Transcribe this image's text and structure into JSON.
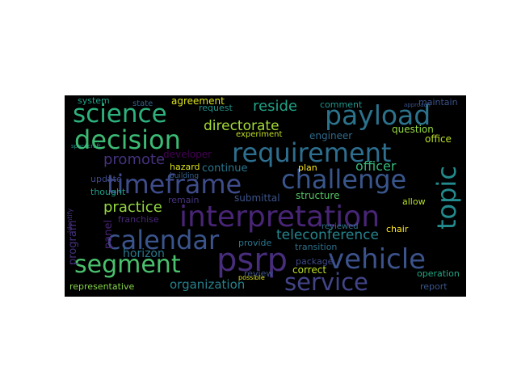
{
  "word_cloud": {
    "background": "#000000",
    "words": [
      {
        "text": "interpretation",
        "color": "#482576"
      },
      {
        "text": "requirement",
        "color": "#2e6e8e"
      },
      {
        "text": "timeframe",
        "color": "#3e4c8a"
      },
      {
        "text": "challenge",
        "color": "#39568c"
      },
      {
        "text": "calendar",
        "color": "#3a548c"
      },
      {
        "text": "payload",
        "color": "#2c738e"
      },
      {
        "text": "decision",
        "color": "#3cbb75"
      },
      {
        "text": "science",
        "color": "#2db27d"
      },
      {
        "text": "segment",
        "color": "#4ac16d"
      },
      {
        "text": "vehicle",
        "color": "#3b528b"
      },
      {
        "text": "service",
        "color": "#414487"
      },
      {
        "text": "psrp",
        "color": "#472d7b"
      },
      {
        "text": "topic",
        "color": "#238a8d"
      },
      {
        "text": "teleconference",
        "color": "#25858e"
      },
      {
        "text": "directorate",
        "color": "#a5db36"
      },
      {
        "text": "practice",
        "color": "#94d840"
      },
      {
        "text": "promote",
        "color": "#46327e"
      },
      {
        "text": "reside",
        "color": "#20a386"
      },
      {
        "text": "officer",
        "color": "#35b779"
      },
      {
        "text": "organization",
        "color": "#26828e"
      },
      {
        "text": "continue",
        "color": "#2a768e"
      },
      {
        "text": "horizon",
        "color": "#29798e"
      },
      {
        "text": "structure",
        "color": "#55c667"
      },
      {
        "text": "submittal",
        "color": "#3b528b"
      },
      {
        "text": "developer",
        "color": "#440154"
      },
      {
        "text": "agreement",
        "color": "#dde318"
      },
      {
        "text": "question",
        "color": "#95d840"
      },
      {
        "text": "engineer",
        "color": "#2f6c8e"
      },
      {
        "text": "maintain",
        "color": "#3a548c"
      },
      {
        "text": "comment",
        "color": "#1f968b"
      },
      {
        "text": "request",
        "color": "#20928c"
      },
      {
        "text": "system",
        "color": "#1fa187"
      },
      {
        "text": "state",
        "color": "#33638d"
      },
      {
        "text": "office",
        "color": "#b8de29"
      },
      {
        "text": "hazard",
        "color": "#dde318"
      },
      {
        "text": "plan",
        "color": "#fde725"
      },
      {
        "text": "update",
        "color": "#3e4989"
      },
      {
        "text": "remain",
        "color": "#46337e"
      },
      {
        "text": "thought",
        "color": "#1f9e89"
      },
      {
        "text": "franchise",
        "color": "#482878"
      },
      {
        "text": "allow",
        "color": "#b5de2b"
      },
      {
        "text": "chair",
        "color": "#fde725"
      },
      {
        "text": "provide",
        "color": "#2a778e"
      },
      {
        "text": "transition",
        "color": "#2c728e"
      },
      {
        "text": "package",
        "color": "#3e4a89"
      },
      {
        "text": "review",
        "color": "#3b528b"
      },
      {
        "text": "correct",
        "color": "#bddf26"
      },
      {
        "text": "operation",
        "color": "#22a884"
      },
      {
        "text": "report",
        "color": "#39568c"
      },
      {
        "text": "representative",
        "color": "#86d549"
      },
      {
        "text": "experiment",
        "color": "#c2df23"
      },
      {
        "text": "reviewed",
        "color": "#2c728e"
      },
      {
        "text": "program",
        "color": "#46307e"
      },
      {
        "text": "panel",
        "color": "#482475"
      },
      {
        "text": "building",
        "color": "#33638d"
      },
      {
        "text": "identify",
        "color": "#46327e"
      },
      {
        "text": "possible",
        "color": "#dde318"
      },
      {
        "text": "approach",
        "color": "#3a548c"
      },
      {
        "text": "spacecraft",
        "color": "#1f988b"
      }
    ]
  }
}
